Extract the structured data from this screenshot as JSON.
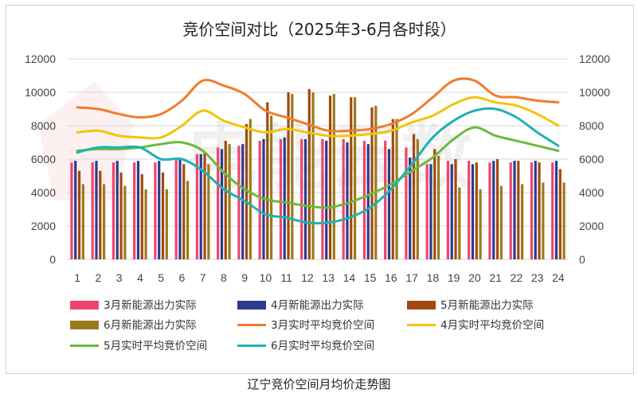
{
  "chart_data": {
    "type": "bar",
    "title": "竞价空间对比（2025年3-6月各时段）",
    "caption": "辽宁竞价空间月均价走势图",
    "watermark": "电能云数",
    "xlabel": "",
    "ylabel": "",
    "categories": [
      "1",
      "2",
      "3",
      "4",
      "5",
      "6",
      "7",
      "8",
      "9",
      "10",
      "11",
      "12",
      "13",
      "14",
      "15",
      "16",
      "17",
      "18",
      "19",
      "20",
      "21",
      "22",
      "23",
      "24"
    ],
    "ylim": [
      0,
      12000
    ],
    "yticks": [
      "0",
      "2000",
      "4000",
      "6000",
      "8000",
      "10000",
      "12000"
    ],
    "y2lim": [
      0,
      12000
    ],
    "y2ticks": [
      "0",
      "2000",
      "4000",
      "6000",
      "8000",
      "10000",
      "12000"
    ],
    "grid": true,
    "legend_position": "bottom",
    "bar_series": [
      {
        "name": "3月新能源出力实际",
        "color": "#f0446c",
        "values": [
          5800,
          5800,
          5800,
          5800,
          5800,
          6000,
          6300,
          6700,
          6800,
          7100,
          7200,
          7200,
          7200,
          7200,
          7100,
          7100,
          6700,
          5700,
          5900,
          5900,
          5800,
          5800,
          5800,
          5800
        ]
      },
      {
        "name": "4月新能源出力实际",
        "color": "#2b3b8f",
        "values": [
          5900,
          5900,
          5900,
          5900,
          5900,
          6000,
          6300,
          6600,
          6900,
          7200,
          7300,
          7200,
          7100,
          7000,
          6900,
          6600,
          6100,
          5700,
          5700,
          5700,
          5900,
          5900,
          5900,
          5900
        ]
      },
      {
        "name": "5月新能源出力实际",
        "color": "#a14a0f",
        "values": [
          5300,
          5300,
          5200,
          5100,
          5200,
          5700,
          6400,
          7100,
          8100,
          9400,
          10000,
          10200,
          9800,
          9700,
          9100,
          8400,
          7500,
          6600,
          6000,
          5800,
          6000,
          5900,
          5800,
          5400
        ]
      },
      {
        "name": "6月新能源出力实际",
        "color": "#9a7a1c",
        "values": [
          4500,
          4500,
          4400,
          4200,
          4200,
          4700,
          5700,
          6900,
          8400,
          8600,
          9900,
          10000,
          9900,
          9700,
          9200,
          8400,
          7200,
          6200,
          4300,
          4200,
          4400,
          4500,
          4600,
          4600
        ]
      }
    ],
    "line_series": [
      {
        "name": "3月实时平均竞价空间",
        "color": "#ef7d2c",
        "values": [
          9100,
          9000,
          8700,
          8500,
          8700,
          9500,
          10700,
          10400,
          9900,
          8900,
          8500,
          8100,
          7700,
          7700,
          7800,
          8100,
          8700,
          9700,
          10700,
          10700,
          9800,
          9700,
          9500,
          9400
        ]
      },
      {
        "name": "4月实时平均竞价空间",
        "color": "#f2c40c",
        "values": [
          7600,
          7700,
          7400,
          7300,
          7300,
          8000,
          8900,
          8300,
          7900,
          7600,
          7800,
          7600,
          7400,
          7400,
          7500,
          7700,
          8200,
          8600,
          9300,
          9700,
          9400,
          9200,
          8700,
          8000
        ]
      },
      {
        "name": "5月实时平均竞价空间",
        "color": "#6cb93a",
        "values": [
          6500,
          6600,
          6600,
          6700,
          6900,
          7000,
          6500,
          5200,
          4200,
          3600,
          3400,
          3200,
          3100,
          3400,
          3900,
          4500,
          5300,
          6100,
          7200,
          7900,
          7400,
          7100,
          6800,
          6500
        ]
      },
      {
        "name": "6月实时平均竞价空间",
        "color": "#1fb2b2",
        "values": [
          6400,
          6700,
          6700,
          6700,
          6000,
          6000,
          5300,
          4200,
          3500,
          2700,
          2500,
          2200,
          2200,
          2500,
          3100,
          4200,
          5700,
          7300,
          8300,
          8900,
          9000,
          8500,
          7600,
          6800
        ]
      }
    ]
  }
}
